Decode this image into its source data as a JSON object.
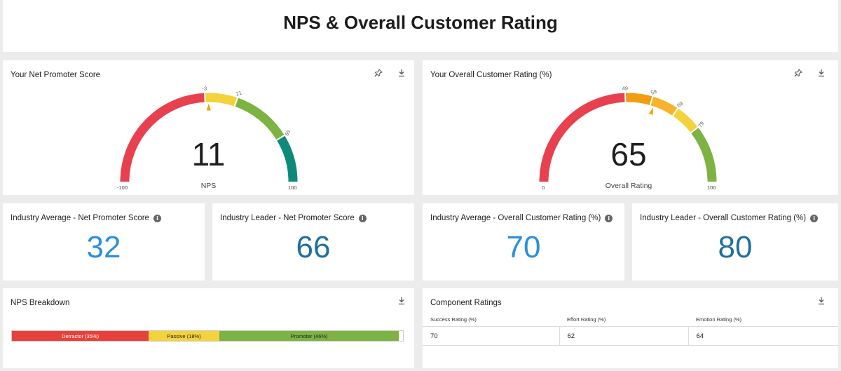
{
  "page": {
    "title": "NPS & Overall Customer Rating"
  },
  "icons": {
    "pin": "pin-icon",
    "download": "download-icon",
    "info": "info-icon"
  },
  "nps_gauge": {
    "title": "Your Net Promoter Score",
    "value": "11",
    "label": "NPS",
    "min": -100,
    "max": 100,
    "min_label": "-100",
    "max_label": "100",
    "marker": -3,
    "bands": [
      {
        "from": -100,
        "to": -3,
        "color": "#e8404f"
      },
      {
        "from": -3,
        "to": 21,
        "color": "#f4d23b"
      },
      {
        "from": 21,
        "to": 65,
        "color": "#7cb342"
      },
      {
        "from": 65,
        "to": 100,
        "color": "#0f8a7a"
      }
    ],
    "ticks": [
      {
        "value": -3,
        "label": "-3"
      },
      {
        "value": 21,
        "label": "21"
      },
      {
        "value": 65,
        "label": "65"
      }
    ]
  },
  "rating_gauge": {
    "title": "Your Overall Customer Rating (%)",
    "value": "65",
    "label": "Overall Rating",
    "min": 0,
    "max": 100,
    "min_label": "0",
    "max_label": "100",
    "marker": 59,
    "bands": [
      {
        "from": 0,
        "to": 49,
        "color": "#e8404f"
      },
      {
        "from": 49,
        "to": 59,
        "color": "#f39c12"
      },
      {
        "from": 59,
        "to": 69,
        "color": "#f7b32b"
      },
      {
        "from": 69,
        "to": 79,
        "color": "#f4d23b"
      },
      {
        "from": 79,
        "to": 100,
        "color": "#7cb342"
      }
    ],
    "ticks": [
      {
        "value": 49,
        "label": "49"
      },
      {
        "value": 59,
        "label": "59"
      },
      {
        "value": 69,
        "label": "69"
      },
      {
        "value": 79,
        "label": "79"
      }
    ]
  },
  "kpis": {
    "nps_avg": {
      "title": "Industry Average - Net Promoter Score",
      "value": "32",
      "color": "#2b8fde"
    },
    "nps_leader": {
      "title": "Industry Leader - Net Promoter Score",
      "value": "66",
      "color": "#1f6f9f"
    },
    "rating_avg": {
      "title": "Industry Average - Overall Customer Rating (%)",
      "value": "70",
      "color": "#2b8fde"
    },
    "rating_leader": {
      "title": "Industry Leader - Overall Customer Rating (%)",
      "value": "80",
      "color": "#1f6f9f"
    }
  },
  "breakdown": {
    "title": "NPS Breakdown",
    "segments": [
      {
        "label": "Detractor (35%)",
        "pct": 35,
        "color": "#e8403a"
      },
      {
        "label": "Passive (18%)",
        "pct": 18,
        "color": "#f4d23b"
      },
      {
        "label": "Promoter (46%)",
        "pct": 46,
        "color": "#7cb342"
      }
    ]
  },
  "components": {
    "title": "Component Ratings",
    "headers": [
      "Success Rating (%)",
      "Effort Rating (%)",
      "Emotion Rating (%)"
    ],
    "rows": [
      [
        "70",
        "62",
        "64"
      ]
    ]
  }
}
